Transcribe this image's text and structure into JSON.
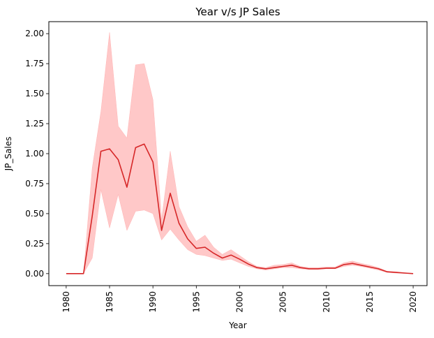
{
  "chart_data": {
    "type": "line",
    "title": "Year v/s JP Sales",
    "xlabel": "Year",
    "ylabel": "JP_Sales",
    "xlim": [
      1978.0,
      2021.6
    ],
    "ylim": [
      -0.1,
      2.1
    ],
    "x_ticks": [
      "1980",
      "1985",
      "1990",
      "1995",
      "2000",
      "2005",
      "2010",
      "2015",
      "2020"
    ],
    "y_ticks": [
      "0.00",
      "0.25",
      "0.50",
      "0.75",
      "1.00",
      "1.25",
      "1.50",
      "1.75",
      "2.00"
    ],
    "grid": false,
    "line_color": "#d62728",
    "band_color": "#ffc8c8",
    "series": [
      {
        "x": [
          1980,
          1981,
          1982,
          1983,
          1984,
          1985,
          1986,
          1987,
          1988,
          1989,
          1990,
          1991,
          1992,
          1993,
          1994,
          1995,
          1996,
          1997,
          1998,
          1999,
          2000,
          2001,
          2002,
          2003,
          2004,
          2005,
          2006,
          2007,
          2008,
          2009,
          2010,
          2011,
          2012,
          2013,
          2014,
          2015,
          2016,
          2017,
          2018,
          2019,
          2020
        ],
        "y": [
          0.0,
          0.0,
          0.0,
          0.48,
          1.02,
          1.04,
          0.95,
          0.72,
          1.05,
          1.08,
          0.93,
          0.36,
          0.67,
          0.42,
          0.29,
          0.21,
          0.22,
          0.17,
          0.13,
          0.155,
          0.12,
          0.08,
          0.05,
          0.04,
          0.05,
          0.06,
          0.07,
          0.05,
          0.04,
          0.04,
          0.045,
          0.045,
          0.075,
          0.085,
          0.07,
          0.055,
          0.04,
          0.015,
          0.01,
          0.005,
          0.0
        ],
        "ci_low": [
          0.0,
          0.0,
          0.0,
          0.13,
          0.7,
          0.38,
          0.66,
          0.36,
          0.52,
          0.53,
          0.5,
          0.28,
          0.37,
          0.28,
          0.2,
          0.16,
          0.15,
          0.13,
          0.11,
          0.12,
          0.09,
          0.06,
          0.04,
          0.03,
          0.04,
          0.05,
          0.05,
          0.04,
          0.035,
          0.035,
          0.04,
          0.04,
          0.06,
          0.07,
          0.06,
          0.045,
          0.03,
          0.01,
          0.005,
          0.002,
          0.0
        ],
        "ci_high": [
          0.0,
          0.0,
          0.0,
          0.88,
          1.35,
          2.01,
          1.23,
          1.13,
          1.74,
          1.75,
          1.45,
          0.45,
          1.02,
          0.56,
          0.39,
          0.27,
          0.32,
          0.22,
          0.16,
          0.2,
          0.15,
          0.1,
          0.06,
          0.05,
          0.07,
          0.075,
          0.09,
          0.06,
          0.05,
          0.05,
          0.055,
          0.055,
          0.09,
          0.105,
          0.085,
          0.07,
          0.05,
          0.02,
          0.015,
          0.008,
          0.0
        ]
      }
    ]
  }
}
